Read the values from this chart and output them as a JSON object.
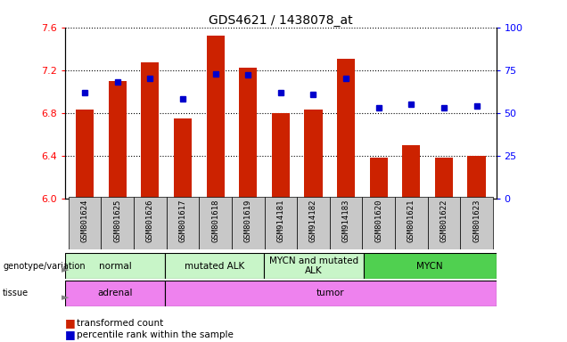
{
  "title": "GDS4621 / 1438078_at",
  "samples": [
    "GSM801624",
    "GSM801625",
    "GSM801626",
    "GSM801617",
    "GSM801618",
    "GSM801619",
    "GSM914181",
    "GSM914182",
    "GSM914183",
    "GSM801620",
    "GSM801621",
    "GSM801622",
    "GSM801623"
  ],
  "red_values": [
    6.83,
    7.1,
    7.27,
    6.75,
    7.52,
    7.22,
    6.8,
    6.83,
    7.31,
    6.38,
    6.5,
    6.38,
    6.4
  ],
  "blue_percentiles": [
    62,
    68,
    70,
    58,
    73,
    72,
    62,
    61,
    70,
    53,
    55,
    53,
    54
  ],
  "ylim": [
    6.0,
    7.6
  ],
  "y2lim": [
    0,
    100
  ],
  "yticks": [
    6.0,
    6.4,
    6.8,
    7.2,
    7.6
  ],
  "y2ticks": [
    0,
    25,
    50,
    75,
    100
  ],
  "genotype_groups": [
    {
      "label": "normal",
      "start": 0,
      "end": 3,
      "color": "#c8f5c8"
    },
    {
      "label": "mutated ALK",
      "start": 3,
      "end": 6,
      "color": "#c8f5c8"
    },
    {
      "label": "MYCN and mutated\nALK",
      "start": 6,
      "end": 9,
      "color": "#c8f5c8"
    },
    {
      "label": "MYCN",
      "start": 9,
      "end": 13,
      "color": "#50d050"
    }
  ],
  "tissue_groups": [
    {
      "label": "adrenal",
      "start": 0,
      "end": 3,
      "color": "#ee82ee"
    },
    {
      "label": "tumor",
      "start": 3,
      "end": 13,
      "color": "#ee82ee"
    }
  ],
  "bar_color": "#cc2200",
  "dot_color": "#0000cc",
  "bar_bottom": 6.0,
  "bar_width": 0.55,
  "tick_bg_color": "#c8c8c8"
}
